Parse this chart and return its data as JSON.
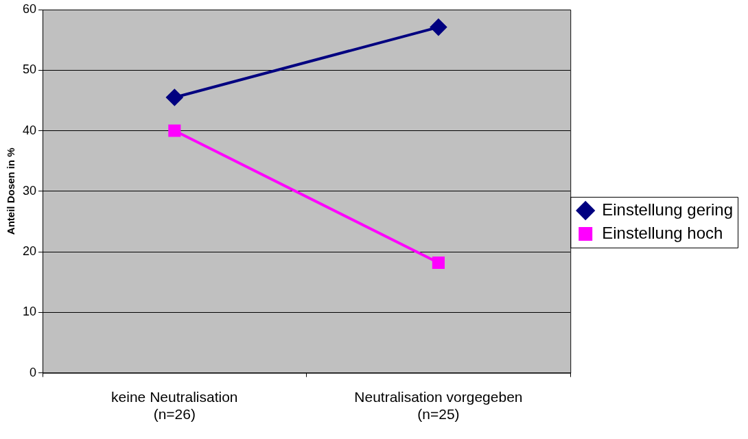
{
  "chart_data": {
    "type": "line",
    "ylabel": "Anteil Dosen in %",
    "categories": [
      "keine Neutralisation\n(n=26)",
      "Neutralisation vorgegeben\n(n=25)"
    ],
    "series": [
      {
        "name": "Einstellung gering",
        "color": "#000080",
        "values": [
          45.5,
          57.1
        ],
        "marker": "diamond"
      },
      {
        "name": "Einstellung hoch",
        "color": "#ff00ff",
        "values": [
          40,
          18.2
        ],
        "marker": "square"
      }
    ],
    "ylim": [
      0,
      60
    ],
    "yticks": [
      0,
      10,
      20,
      30,
      40,
      50,
      60
    ],
    "grid": "y",
    "legend": "right",
    "line_style": "solid"
  }
}
